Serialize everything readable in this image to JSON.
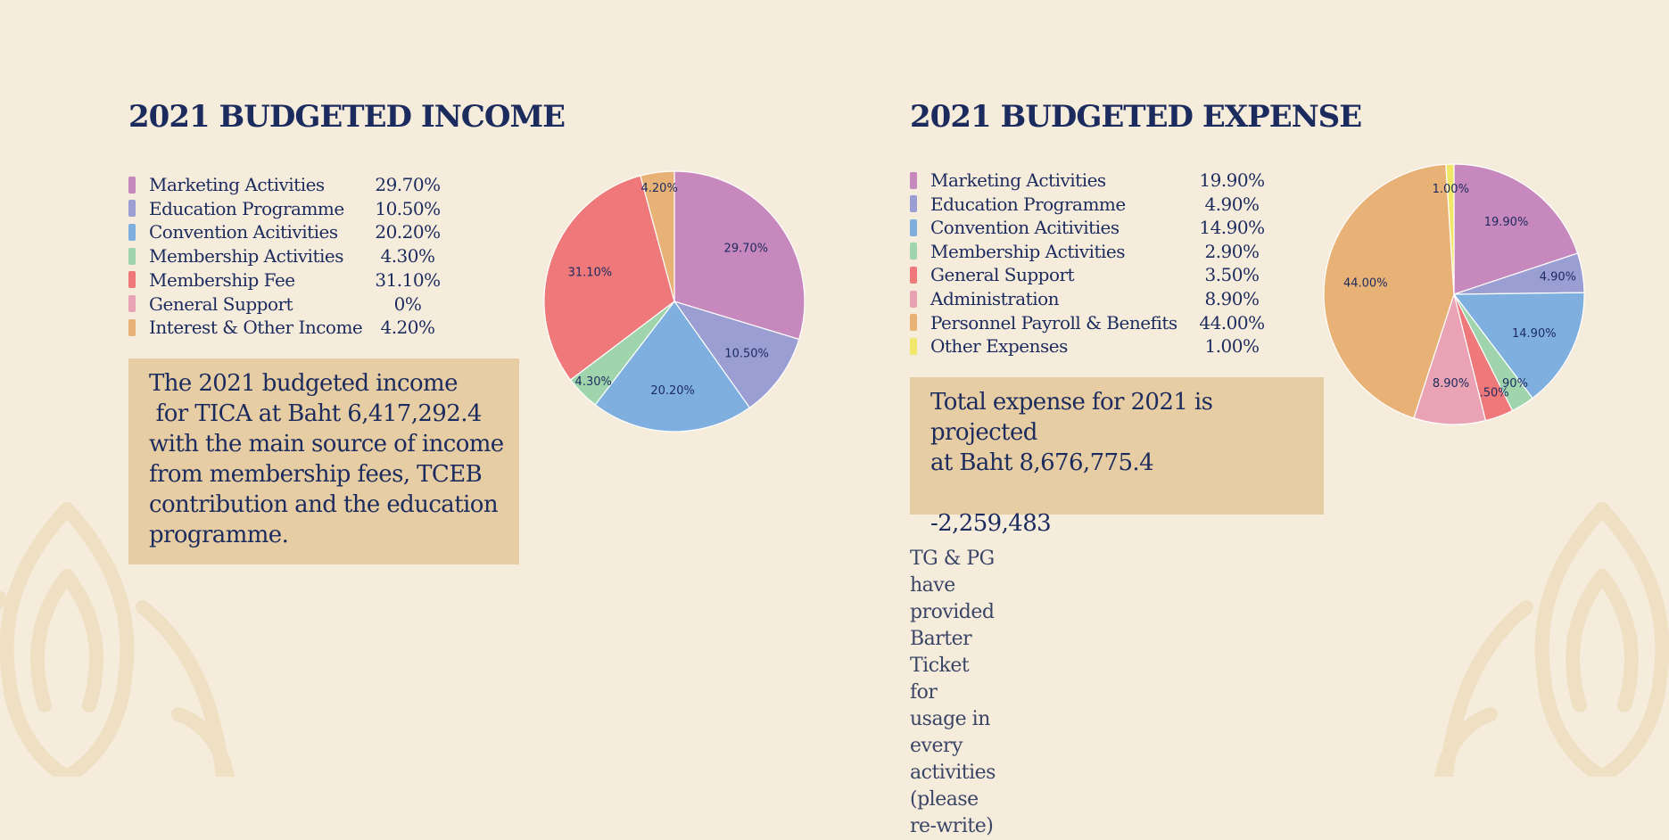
{
  "chart_data": [
    {
      "type": "pie",
      "title": "2021 BUDGETED INCOME",
      "categories": [
        "Marketing Activities",
        "Education Programme",
        "Convention Acitivities",
        "Membership Activities",
        "Membership Fee",
        "General Support",
        "Interest & Other Income"
      ],
      "values": [
        29.7,
        10.5,
        20.2,
        4.3,
        31.1,
        0,
        4.2
      ],
      "value_labels": [
        "29.70%",
        "10.50%",
        "20.20%",
        "4.30%",
        "31.10%",
        "0%",
        "4.20%"
      ],
      "slice_labels": [
        "29.70%",
        "10.50%",
        "20.20%",
        "4.30%",
        "31.10%",
        "",
        "4.20%"
      ],
      "colors": [
        "#c688bd",
        "#9b9ed3",
        "#7eafdf",
        "#9fd4ad",
        "#ee787a",
        "#e9a3b4",
        "#e8b276"
      ],
      "legend": "left"
    },
    {
      "type": "pie",
      "title": "2021 BUDGETED EXPENSE",
      "categories": [
        "Marketing Activities",
        "Education Programme",
        "Convention Acitivities",
        "Membership Activities",
        "General Support",
        "Administration",
        "Personnel Payroll & Benefits",
        "Other Expenses"
      ],
      "values": [
        19.9,
        4.9,
        14.9,
        2.9,
        3.5,
        8.9,
        44.0,
        1.0
      ],
      "value_labels": [
        "19.90%",
        "4.90%",
        "14.90%",
        "2.90%",
        "3.50%",
        "8.90%",
        "44.00%",
        "1.00%"
      ],
      "slice_labels": [
        "19.90%",
        "4.90%",
        "14.90%",
        "2.90%",
        "3.50%",
        "8.90%",
        "44.00%",
        "1.00%"
      ],
      "colors": [
        "#c688bd",
        "#9b9ed3",
        "#7eafdf",
        "#9fd4ad",
        "#ee787a",
        "#e9a3b4",
        "#e8b276",
        "#f1e86a"
      ],
      "legend": "left"
    }
  ],
  "income": {
    "note": "The 2021 budgeted income\n for TICA at Baht 6,417,292.4\nwith the main source of income\nfrom membership fees, TCEB\ncontribution and the education\nprogramme."
  },
  "expense": {
    "note": "Total expense for 2021 is projected\nat Baht 8,676,775.4\n\n-2,259,483",
    "footnote": "TG & PG have provided Barter Ticket for usage in\nevery activities (please re-write)"
  },
  "colors": {
    "background": "#f5ecdc",
    "navy": "#1c2b5e",
    "box": "#e6cda3",
    "ornament": "#efdfc3"
  }
}
